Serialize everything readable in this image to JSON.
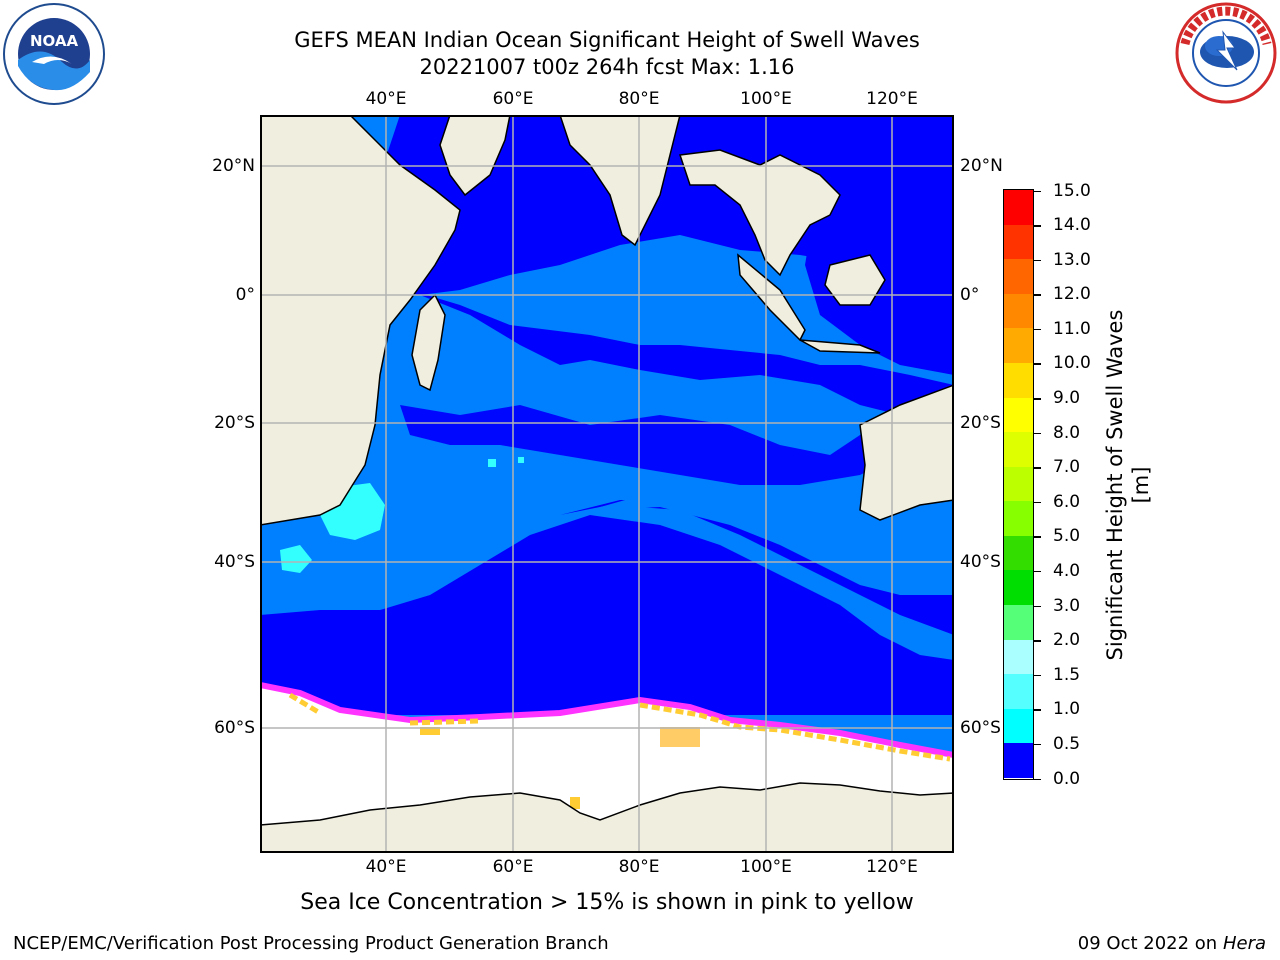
{
  "title": {
    "line1": "GEFS MEAN Indian Ocean Significant Height of Swell Waves",
    "line2": "20221007 t00z 264h fcst   Max: 1.16"
  },
  "logos": {
    "left": "noaa-logo",
    "right": "nws-logo"
  },
  "map": {
    "projection": "lat-lon",
    "lon_range": [
      20,
      130
    ],
    "lat_range": [
      -88,
      28
    ],
    "grid": true,
    "lon_ticks": [
      "40°E",
      "60°E",
      "80°E",
      "100°E",
      "120°E"
    ],
    "lat_ticks": [
      "20°N",
      "0°",
      "20°S",
      "40°S",
      "60°S"
    ],
    "colors": {
      "land": "#efeedf",
      "ocean_low": "#0000ff",
      "ocean_mid": "#0080ff",
      "swell_cyan": "#33ffff",
      "sea_ice": "#ffffff",
      "ice_edge_pink": "#ff33ff",
      "ice_edge_yellow": "#ffcc33",
      "grid": "#b3b3b3"
    }
  },
  "colorbar": {
    "label": "Significant Height of Swell Waves [m]",
    "ticks": [
      "15.0",
      "14.0",
      "13.0",
      "12.0",
      "11.0",
      "10.0",
      "9.0",
      "8.0",
      "7.0",
      "6.0",
      "5.0",
      "4.0",
      "3.0",
      "2.0",
      "1.5",
      "1.0",
      "0.5",
      "0.0"
    ],
    "colors": [
      "#ff0000",
      "#ff3300",
      "#ff6600",
      "#ff8800",
      "#ffaa00",
      "#ffdd00",
      "#ffff00",
      "#ddff00",
      "#bbff00",
      "#88ff00",
      "#33dd00",
      "#00dd00",
      "#55ff77",
      "#aaffff",
      "#55ffff",
      "#00ffff",
      "#0080ff",
      "#0000ff"
    ]
  },
  "caption": "Sea Ice Concentration > 15% is shown in pink to yellow",
  "footer": {
    "left": "NCEP/EMC/Verification Post Processing Product Generation Branch",
    "right_prefix": "09 Oct 2022 on ",
    "right_host": "Hera"
  }
}
